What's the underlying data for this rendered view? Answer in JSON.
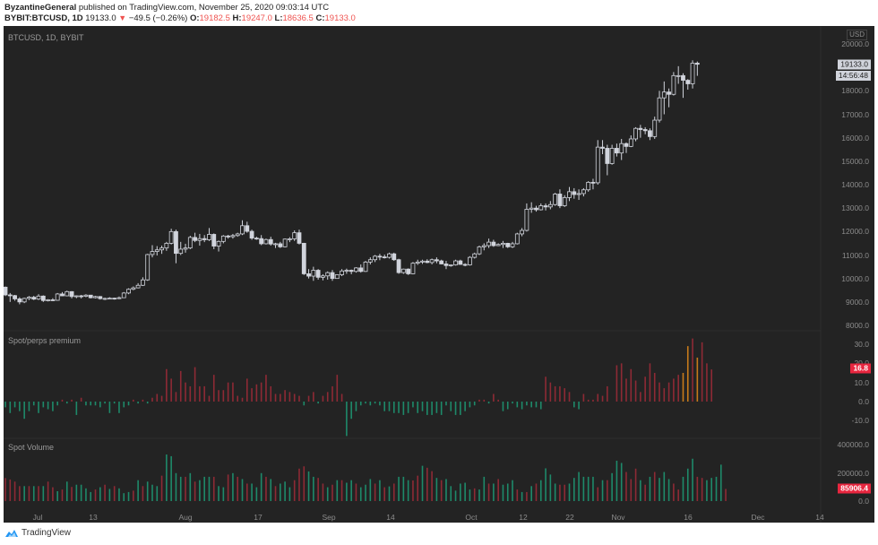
{
  "header": {
    "author": "ByzantineGeneral",
    "published_text": " published on TradingView.com, November 25, 2020 09:03:14 UTC",
    "symbol": "BYBIT:BTCUSD, 1D",
    "last": "19133.0",
    "change_arrow": "▼",
    "change": "−49.5 (−0.26%)",
    "o_label": "O:",
    "o": "19182.5",
    "h_label": "H:",
    "h": "19247.0",
    "l_label": "L:",
    "l": "18636.5",
    "c_label": "C:",
    "c": "19133.0"
  },
  "main_pane": {
    "label": "BTCUSD, 1D, BYBIT",
    "currency": "USD",
    "price_tag": "19133.0",
    "countdown_tag": "14:56:48"
  },
  "premium_pane": {
    "label": "Spot/perps premium",
    "value_tag": "16.8"
  },
  "volume_pane": {
    "label": "Spot Volume",
    "value_tag": "85906.4"
  },
  "footer": {
    "brand": "TradingView"
  },
  "colors": {
    "background": "#232323",
    "candle": "#d1d4dc",
    "up_bar": "#1e8a6a",
    "down_bar": "#8e2a35",
    "highlight_bar": "#c77a1a",
    "tag_red": "#e8263f"
  },
  "chart_data": [
    {
      "type": "candlestick",
      "title": "BTCUSD, 1D, BYBIT",
      "ylabel": "USD",
      "ylim": [
        8000,
        20000
      ],
      "y_ticks": [
        "20000.0",
        "18000.0",
        "17000.0",
        "16000.0",
        "15000.0",
        "14000.0",
        "13000.0",
        "12000.0",
        "11000.0",
        "10000.0",
        "9000.0",
        "8000.0"
      ],
      "x_ticks": [
        "Jul",
        "13",
        "Aug",
        "17",
        "Sep",
        "14",
        "Oct",
        "12",
        "22",
        "Nov",
        "16",
        "Dec",
        "14"
      ],
      "start_date": "2020-06-24",
      "ohlc": [
        [
          9630,
          9660,
          9250,
          9300
        ],
        [
          9300,
          9380,
          9000,
          9270
        ],
        [
          9270,
          9300,
          9050,
          9130
        ],
        [
          9130,
          9200,
          8900,
          9000
        ],
        [
          9000,
          9180,
          8950,
          9150
        ],
        [
          9150,
          9250,
          9080,
          9200
        ],
        [
          9200,
          9260,
          9080,
          9120
        ],
        [
          9120,
          9330,
          9080,
          9250
        ],
        [
          9250,
          9280,
          9000,
          9060
        ],
        [
          9060,
          9120,
          9020,
          9090
        ],
        [
          9090,
          9160,
          9040,
          9070
        ],
        [
          9070,
          9380,
          9050,
          9340
        ],
        [
          9340,
          9420,
          9250,
          9260
        ],
        [
          9260,
          9480,
          9240,
          9440
        ],
        [
          9440,
          9460,
          9150,
          9230
        ],
        [
          9230,
          9280,
          9160,
          9260
        ],
        [
          9260,
          9300,
          9150,
          9240
        ],
        [
          9240,
          9330,
          9200,
          9290
        ],
        [
          9290,
          9300,
          9150,
          9180
        ],
        [
          9180,
          9260,
          9150,
          9230
        ],
        [
          9230,
          9250,
          9100,
          9140
        ],
        [
          9140,
          9180,
          9080,
          9150
        ],
        [
          9150,
          9200,
          9120,
          9160
        ],
        [
          9160,
          9180,
          9100,
          9140
        ],
        [
          9140,
          9230,
          9120,
          9180
        ],
        [
          9180,
          9420,
          9170,
          9380
        ],
        [
          9380,
          9580,
          9330,
          9540
        ],
        [
          9540,
          9660,
          9500,
          9600
        ],
        [
          9600,
          9800,
          9580,
          9710
        ],
        [
          9710,
          10050,
          9680,
          9940
        ],
        [
          9940,
          11050,
          9900,
          11020
        ],
        [
          11020,
          11420,
          10900,
          11150
        ],
        [
          11150,
          11380,
          10980,
          11220
        ],
        [
          11220,
          11400,
          11050,
          11300
        ],
        [
          11300,
          11560,
          11180,
          11500
        ],
        [
          11500,
          12120,
          11450,
          12000
        ],
        [
          12000,
          12080,
          10650,
          11070
        ],
        [
          11070,
          11560,
          11000,
          11250
        ],
        [
          11250,
          11480,
          11100,
          11300
        ],
        [
          11300,
          11820,
          11250,
          11750
        ],
        [
          11750,
          11950,
          11550,
          11620
        ],
        [
          11620,
          11900,
          11400,
          11700
        ],
        [
          11700,
          11850,
          11550,
          11650
        ],
        [
          11650,
          12150,
          11600,
          11880
        ],
        [
          11880,
          11920,
          11250,
          11380
        ],
        [
          11380,
          11620,
          11150,
          11580
        ],
        [
          11580,
          11850,
          11500,
          11810
        ],
        [
          11810,
          11860,
          11700,
          11780
        ],
        [
          11780,
          11900,
          11700,
          11830
        ],
        [
          11830,
          11950,
          11780,
          11900
        ],
        [
          11900,
          12480,
          11850,
          12250
        ],
        [
          12250,
          12420,
          11950,
          12010
        ],
        [
          12010,
          12080,
          11650,
          11720
        ],
        [
          11720,
          11780,
          11650,
          11700
        ],
        [
          11700,
          11850,
          11420,
          11480
        ],
        [
          11480,
          11700,
          11450,
          11660
        ],
        [
          11660,
          11780,
          11400,
          11470
        ],
        [
          11470,
          11520,
          11300,
          11480
        ],
        [
          11480,
          11560,
          11300,
          11350
        ],
        [
          11350,
          11700,
          11330,
          11680
        ],
        [
          11680,
          11760,
          11550,
          11690
        ],
        [
          11690,
          12050,
          11600,
          11950
        ],
        [
          11950,
          12080,
          11450,
          11500
        ],
        [
          11500,
          11520,
          10150,
          10200
        ],
        [
          10200,
          10400,
          10000,
          10100
        ],
        [
          10100,
          10500,
          9900,
          10350
        ],
        [
          10350,
          10400,
          9950,
          10050
        ],
        [
          10050,
          10180,
          9920,
          10110
        ],
        [
          10110,
          10300,
          9950,
          10250
        ],
        [
          10250,
          10360,
          9900,
          10000
        ],
        [
          10000,
          10180,
          9990,
          10160
        ],
        [
          10160,
          10400,
          10100,
          10320
        ],
        [
          10320,
          10420,
          10200,
          10350
        ],
        [
          10350,
          10380,
          10180,
          10300
        ],
        [
          10300,
          10480,
          10250,
          10450
        ],
        [
          10450,
          10600,
          10250,
          10300
        ],
        [
          10300,
          10750,
          10280,
          10700
        ],
        [
          10700,
          10900,
          10600,
          10800
        ],
        [
          10800,
          11000,
          10700,
          10950
        ],
        [
          10950,
          11050,
          10780,
          10920
        ],
        [
          10920,
          11020,
          10850,
          10900
        ],
        [
          10900,
          11100,
          10850,
          11050
        ],
        [
          11050,
          11100,
          10750,
          10800
        ],
        [
          10800,
          10840,
          10200,
          10250
        ],
        [
          10250,
          10420,
          10200,
          10400
        ],
        [
          10400,
          10430,
          10150,
          10200
        ],
        [
          10200,
          10700,
          10180,
          10650
        ],
        [
          10650,
          10800,
          10580,
          10700
        ],
        [
          10700,
          10800,
          10620,
          10740
        ],
        [
          10740,
          10820,
          10650,
          10680
        ],
        [
          10680,
          10850,
          10600,
          10800
        ],
        [
          10800,
          10900,
          10650,
          10750
        ],
        [
          10750,
          10800,
          10600,
          10620
        ],
        [
          10620,
          10750,
          10400,
          10550
        ],
        [
          10550,
          10600,
          10500,
          10580
        ],
        [
          10580,
          10800,
          10550,
          10750
        ],
        [
          10750,
          10800,
          10580,
          10600
        ],
        [
          10600,
          10650,
          10520,
          10580
        ],
        [
          10580,
          10950,
          10550,
          10900
        ],
        [
          10900,
          11100,
          10850,
          11050
        ],
        [
          11050,
          11400,
          11000,
          11350
        ],
        [
          11350,
          11500,
          11200,
          11400
        ],
        [
          11400,
          11700,
          11300,
          11550
        ],
        [
          11550,
          11650,
          11350,
          11400
        ],
        [
          11400,
          11500,
          11380,
          11450
        ],
        [
          11450,
          11600,
          11300,
          11500
        ],
        [
          11500,
          11520,
          11300,
          11350
        ],
        [
          11350,
          11560,
          11300,
          11480
        ],
        [
          11480,
          11950,
          11450,
          11900
        ],
        [
          11900,
          12150,
          11800,
          12050
        ],
        [
          12050,
          13200,
          12000,
          12950
        ],
        [
          12950,
          13250,
          12800,
          13000
        ],
        [
          13000,
          13100,
          12850,
          12930
        ],
        [
          12930,
          13200,
          12900,
          13100
        ],
        [
          13100,
          13200,
          12900,
          13050
        ],
        [
          13050,
          13300,
          12950,
          13150
        ],
        [
          13150,
          13650,
          13100,
          13600
        ],
        [
          13600,
          13800,
          13000,
          13100
        ],
        [
          13100,
          13550,
          13050,
          13450
        ],
        [
          13450,
          13900,
          13300,
          13700
        ],
        [
          13700,
          13850,
          13400,
          13580
        ],
        [
          13580,
          13800,
          13350,
          13620
        ],
        [
          13620,
          13850,
          13500,
          13780
        ],
        [
          13780,
          14150,
          13700,
          14100
        ],
        [
          14100,
          14250,
          13800,
          14080
        ],
        [
          14080,
          15900,
          14000,
          15600
        ],
        [
          15600,
          15900,
          15300,
          15550
        ],
        [
          15550,
          15700,
          14400,
          14900
        ],
        [
          14900,
          15700,
          14850,
          15550
        ],
        [
          15550,
          15750,
          15200,
          15350
        ],
        [
          15350,
          15950,
          15050,
          15750
        ],
        [
          15750,
          15800,
          15350,
          15630
        ],
        [
          15630,
          16100,
          15600,
          15950
        ],
        [
          15950,
          16450,
          15850,
          16400
        ],
        [
          16400,
          16550,
          16000,
          16350
        ],
        [
          16350,
          16450,
          16150,
          16300
        ],
        [
          16300,
          16400,
          15900,
          16050
        ],
        [
          16050,
          16900,
          15950,
          16750
        ],
        [
          16750,
          18000,
          16650,
          17700
        ],
        [
          17700,
          18400,
          17000,
          17950
        ],
        [
          17950,
          18100,
          17300,
          17850
        ],
        [
          17850,
          18800,
          17800,
          18650
        ],
        [
          18650,
          19050,
          18300,
          18650
        ],
        [
          18650,
          18750,
          17700,
          18450
        ],
        [
          18450,
          18500,
          18050,
          18300
        ],
        [
          18300,
          19300,
          18100,
          19180
        ],
        [
          19180,
          19250,
          18640,
          19133
        ]
      ]
    },
    {
      "type": "bar",
      "title": "Spot/perps premium",
      "ylim": [
        -15,
        35
      ],
      "y_ticks": [
        "30.0",
        "20.0",
        "10.0",
        "0.0",
        "-10.0"
      ],
      "values": [
        -3,
        -6,
        -3,
        -5,
        -9,
        -5,
        -2,
        -6,
        -3,
        -4,
        -5,
        -2,
        1,
        -1,
        1,
        -7,
        2,
        -2,
        -2,
        -2,
        -3,
        -1,
        -6,
        -1,
        -6,
        -3,
        -2,
        1,
        -1,
        1,
        -1,
        2,
        4,
        3,
        17,
        12,
        5,
        16,
        10,
        8,
        18,
        8,
        8,
        3,
        14,
        6,
        6,
        10,
        10,
        3,
        2,
        12,
        7,
        9,
        10,
        14,
        8,
        4,
        4,
        6,
        5,
        4,
        3,
        -2,
        3,
        5,
        -1,
        3,
        5,
        8,
        14,
        4,
        -18,
        -9,
        -5,
        -2,
        -1,
        -2,
        -1,
        -2,
        -5,
        -5,
        -6,
        -6,
        -7,
        -6,
        -3,
        -6,
        -5,
        -7,
        -7,
        -6,
        -7,
        -2,
        -5,
        -7,
        -7,
        -5,
        -3,
        -2,
        1,
        1,
        -1,
        4,
        1,
        -5,
        -4,
        -1,
        -3,
        -4,
        -2,
        -3,
        -3,
        -4,
        13,
        10,
        8,
        8,
        7,
        5,
        -3,
        -4,
        4,
        1,
        1,
        4,
        3,
        8,
        0,
        19,
        20,
        12,
        17,
        11,
        5,
        13,
        20,
        15,
        10,
        7,
        10,
        12,
        14,
        15,
        29,
        33,
        23,
        31,
        20,
        16.8
      ],
      "highlight_indices": [
        143,
        144,
        146
      ]
    },
    {
      "type": "bar",
      "title": "Spot Volume",
      "ylim": [
        0,
        400000
      ],
      "y_ticks": [
        "400000.0",
        "200000.0",
        "0.0"
      ],
      "values": [
        163000,
        153000,
        138000,
        106000,
        106000,
        106000,
        106000,
        106000,
        106000,
        138000,
        98000,
        70000,
        82000,
        138000,
        100000,
        116000,
        116000,
        90000,
        64000,
        82000,
        98000,
        116000,
        86000,
        106000,
        90000,
        56000,
        64000,
        74000,
        148000,
        106000,
        138000,
        116000,
        106000,
        180000,
        330000,
        318000,
        198000,
        172000,
        172000,
        198000,
        138000,
        148000,
        172000,
        172000,
        172000,
        106000,
        98000,
        188000,
        198000,
        172000,
        156000,
        124000,
        124000,
        98000,
        198000,
        172000,
        156000,
        106000,
        124000,
        138000,
        98000,
        148000,
        230000,
        246000,
        210000,
        172000,
        164000,
        124000,
        98000,
        116000,
        148000,
        148000,
        130000,
        148000,
        124000,
        98000,
        116000,
        156000,
        124000,
        148000,
        98000,
        104000,
        124000,
        172000,
        172000,
        148000,
        146000,
        180000,
        250000,
        236000,
        212000,
        164000,
        148000,
        156000,
        106000,
        74000,
        124000,
        130000,
        82000,
        90000,
        82000,
        172000,
        124000,
        124000,
        156000,
        116000,
        124000,
        148000,
        82000,
        64000,
        64000,
        106000,
        124000,
        148000,
        232000,
        188000,
        124000,
        116000,
        116000,
        124000,
        164000,
        206000,
        172000,
        172000,
        172000,
        98000,
        148000,
        148000,
        198000,
        286000,
        270000,
        206000,
        156000,
        230000,
        148000,
        116000,
        172000,
        206000,
        164000,
        206000,
        156000,
        124000,
        82000,
        172000,
        230000,
        300000,
        172000,
        164000,
        148000,
        164000,
        172000,
        258000,
        85906.4
      ],
      "down_indices": [
        0,
        1,
        2,
        3,
        5,
        7,
        9,
        10,
        12,
        14,
        19,
        21,
        23,
        27,
        29,
        33,
        38,
        40,
        44,
        47,
        49,
        51,
        55,
        57,
        61,
        62,
        63,
        66,
        67,
        69,
        71,
        74,
        78,
        80,
        82,
        86,
        87,
        89,
        90,
        92,
        99,
        102,
        104,
        108,
        110,
        112,
        117,
        118,
        125,
        127,
        131,
        132,
        133,
        135,
        137,
        141,
        142,
        146,
        147,
        152
      ]
    }
  ]
}
